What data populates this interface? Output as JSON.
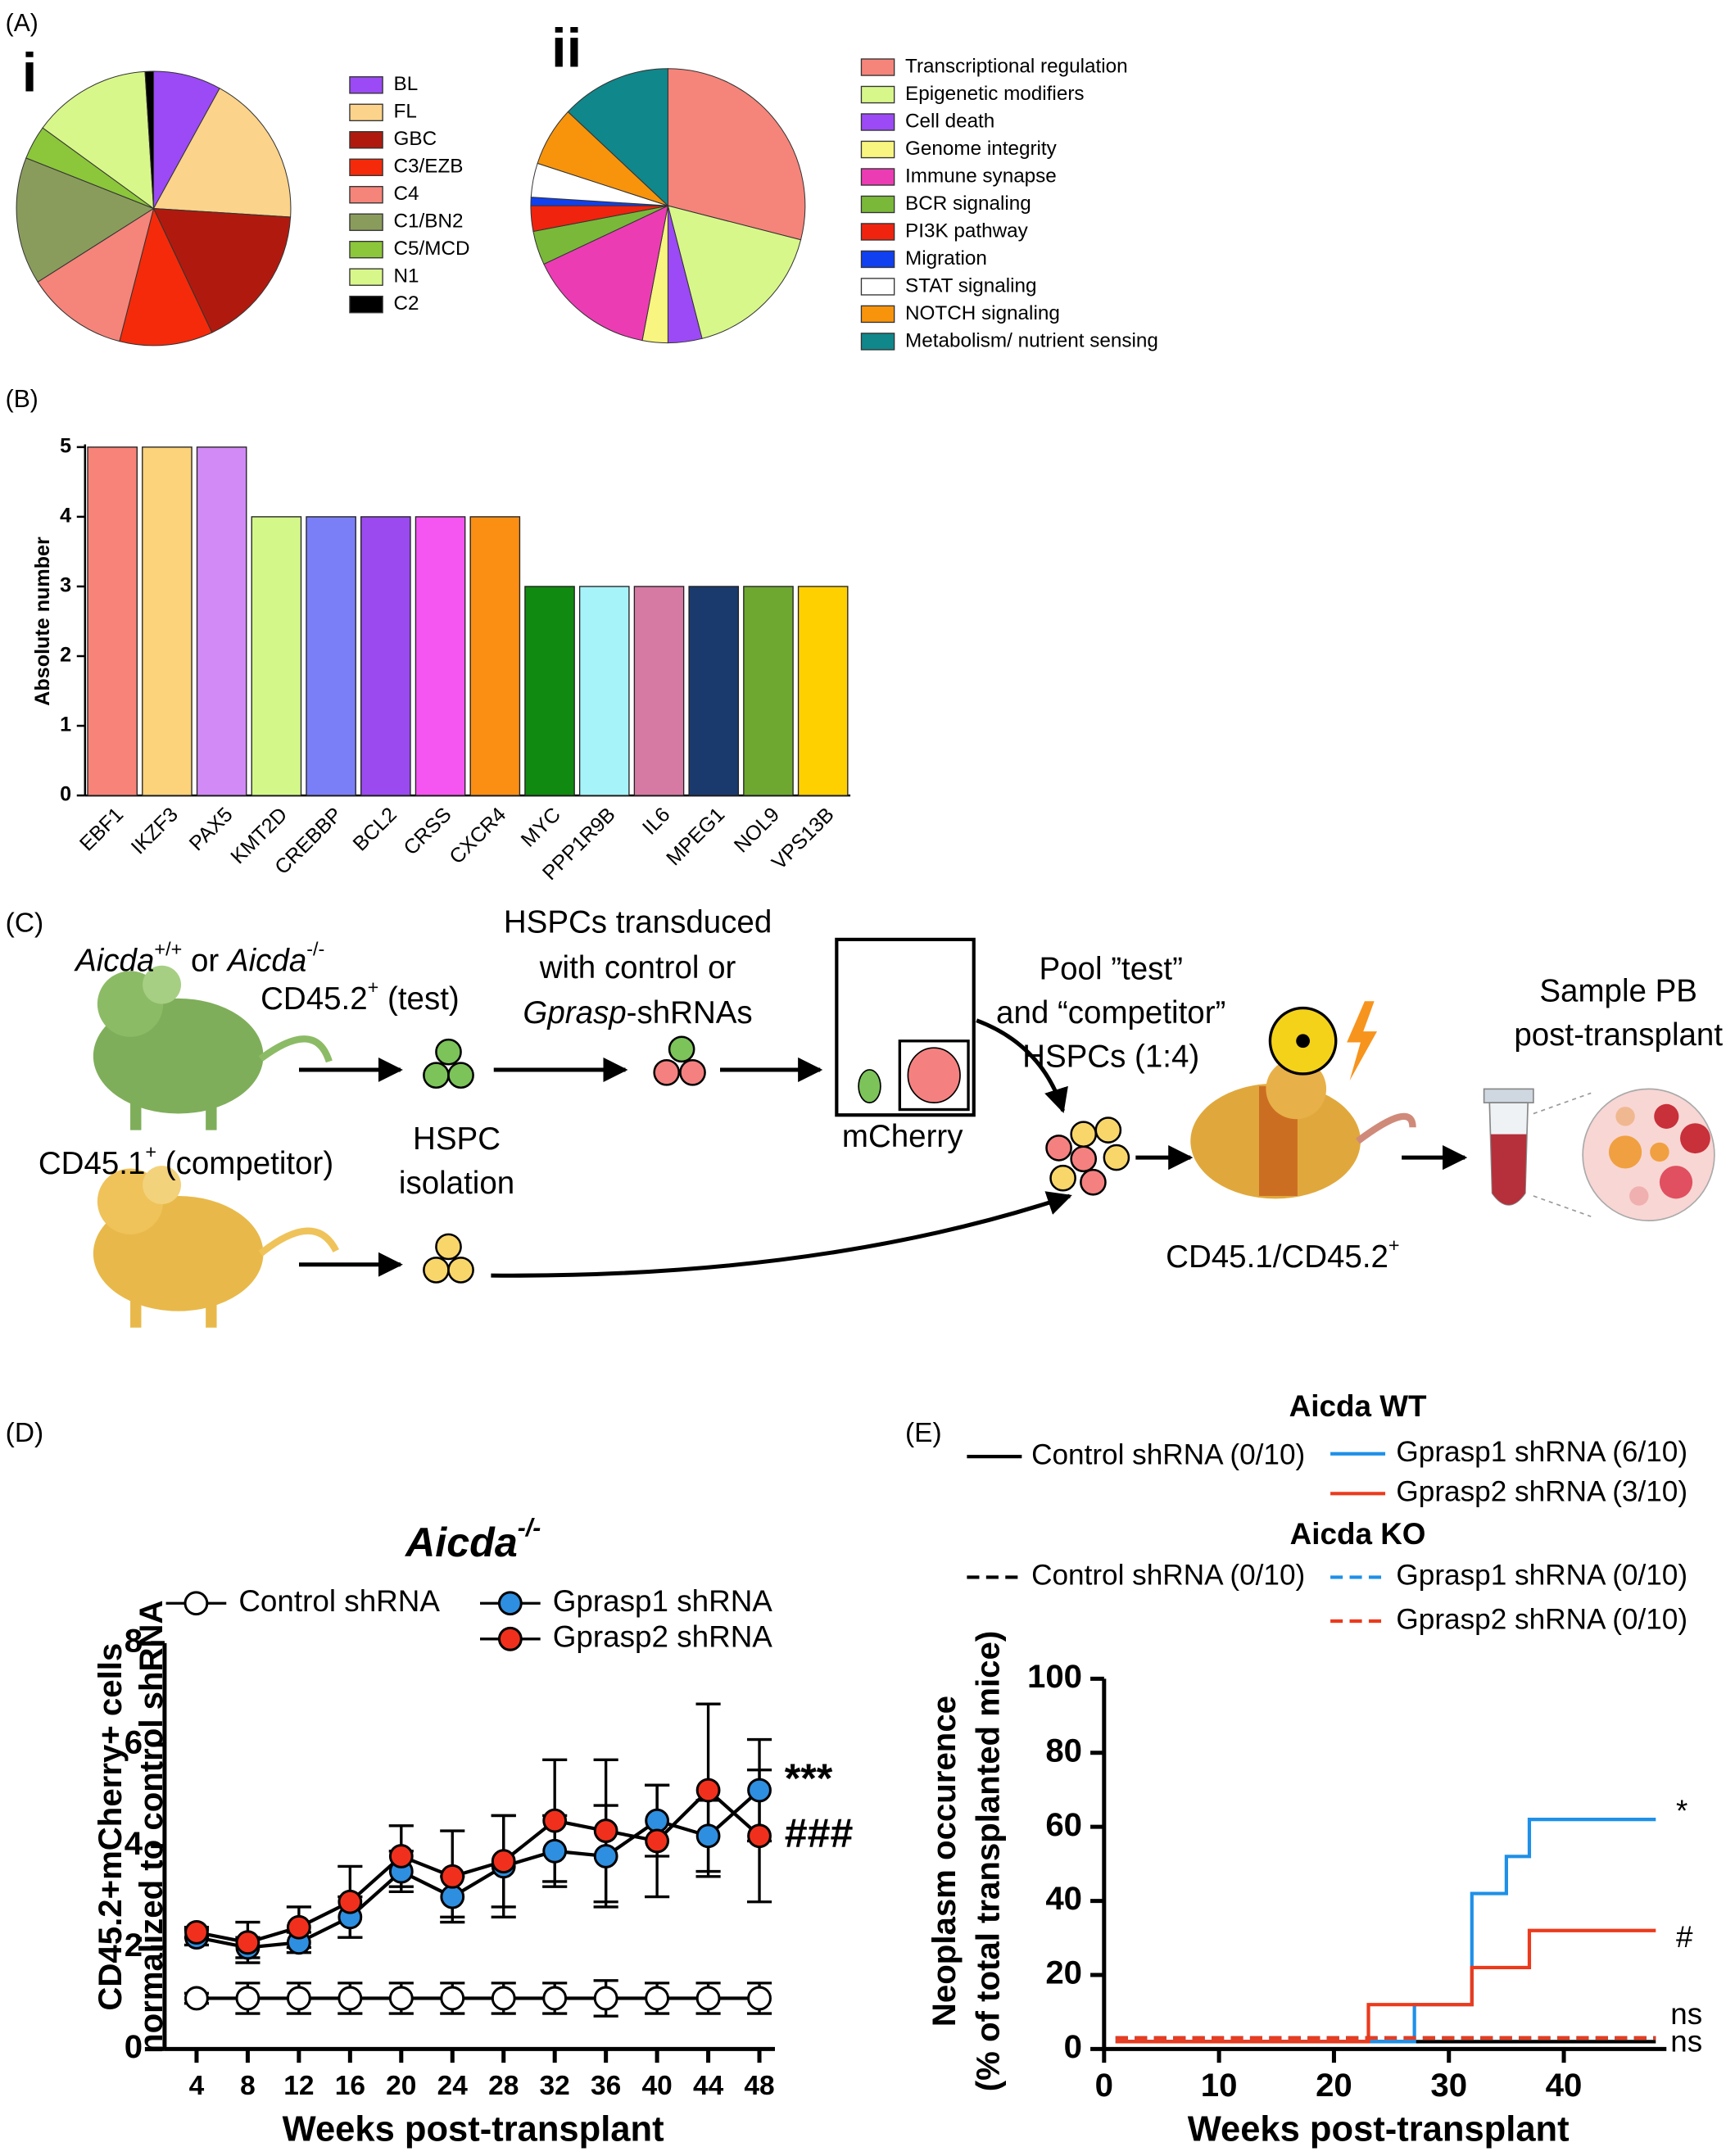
{
  "panel_labels": [
    "(A)",
    "(B)",
    "(C)",
    "(D)",
    "(E)"
  ],
  "diagram": {
    "texts": [
      [
        "Aicda",
        "+/+",
        " or ",
        "Aicda",
        "-/-"
      ],
      [
        "CD45.2",
        "+",
        " (test)"
      ],
      [
        "HSPCs transduced"
      ],
      [
        "with control or"
      ],
      [
        "Gprasp",
        "-shRNAs"
      ],
      [
        "Pool ”test”"
      ],
      [
        "and “competitor”"
      ],
      [
        "HSPCs (1:4)"
      ],
      [
        "Sample PB"
      ],
      [
        "post-transplant"
      ],
      [
        "mCherry"
      ],
      [
        "HSPC"
      ],
      [
        "isolation"
      ],
      [
        "CD45.1",
        "+",
        " (competitor)"
      ],
      [
        "CD45.1/CD45.2",
        "+"
      ]
    ]
  },
  "chart_data": [
    {
      "type": "pie",
      "title": "i",
      "categories": [
        "BL",
        "FL",
        "GBC",
        "C3/EZB",
        "C4",
        "C1/BN2",
        "C5/MCD",
        "N1",
        "C2"
      ],
      "values": [
        8,
        18,
        17,
        11,
        12,
        15,
        4,
        14,
        1
      ],
      "colors": [
        "#9b4af5",
        "#fbd38a",
        "#b01a0e",
        "#f52a0a",
        "#f5847a",
        "#8a9c5c",
        "#8cc63a",
        "#d8f78a",
        "#000000"
      ]
    },
    {
      "type": "pie",
      "title": "ii",
      "categories": [
        "Transcriptional regulation",
        "Epigenetic modifiers",
        "Cell death",
        "Genome integrity",
        "Immune synapse",
        "BCR signaling",
        "PI3K pathway",
        "Migration",
        "STAT signaling",
        "NOTCH signaling",
        "Metabolism/ nutrient sensing"
      ],
      "values": [
        29,
        17,
        4,
        3,
        15,
        4,
        3,
        1,
        4,
        7,
        13
      ],
      "colors": [
        "#f5847a",
        "#d8f78a",
        "#9b4af5",
        "#f8f580",
        "#ec3cb4",
        "#7ab83a",
        "#f0230f",
        "#1040f0",
        "#ffffff",
        "#f7940c",
        "#10878a"
      ]
    },
    {
      "type": "bar",
      "ylabel": "Absolute number",
      "categories": [
        "EBF1",
        "IKZF3",
        "PAX5",
        "KMT2D",
        "CREBBP",
        "BCL2",
        "CRSS",
        "CXCR4",
        "MYC",
        "PPP1R9B",
        "IL6",
        "MPEG1",
        "NOL9",
        "VPS13B"
      ],
      "values": [
        5,
        5,
        5,
        4,
        4,
        4,
        4,
        4,
        3,
        3,
        3,
        3,
        3,
        3
      ],
      "colors": [
        "#f88379",
        "#fcd27a",
        "#d28af7",
        "#d4f78a",
        "#7b7ff7",
        "#9b4af0",
        "#f555f0",
        "#fa8f14",
        "#108a10",
        "#a6f3fa",
        "#d67aa4",
        "#1a3a6e",
        "#6ea830",
        "#ffd000"
      ],
      "ylim": [
        0,
        5
      ],
      "yticks": [
        0,
        1,
        2,
        3,
        4,
        5
      ]
    },
    {
      "type": "line",
      "title": "Aicda",
      "title_sup": "-/-",
      "xlabel": "Weeks post-transplant",
      "ylabel": [
        "CD45.2+mCherry+ cells",
        "normalized to control shRNA"
      ],
      "x": [
        4,
        8,
        12,
        16,
        20,
        24,
        28,
        32,
        36,
        40,
        44,
        48
      ],
      "xlim": [
        1.5,
        50.5
      ],
      "xticks": [
        4,
        8,
        12,
        16,
        20,
        24,
        28,
        32,
        36,
        40,
        44,
        48
      ],
      "ylim": [
        0,
        8
      ],
      "yticks": [
        0,
        2,
        4,
        6,
        8
      ],
      "series": [
        {
          "name": "Control shRNA",
          "color": "#ffffff",
          "values": [
            1,
            1,
            1,
            1,
            1,
            1,
            1,
            1,
            1,
            1,
            1,
            1
          ],
          "errors": [
            0.1,
            0.3,
            0.3,
            0.3,
            0.3,
            0.3,
            0.3,
            0.3,
            0.35,
            0.3,
            0.3,
            0.3
          ]
        },
        {
          "name": "Gprasp1 shRNA",
          "color": "#2e8ee0",
          "values": [
            2.2,
            2.0,
            2.1,
            2.6,
            3.5,
            3.0,
            3.6,
            3.9,
            3.8,
            4.5,
            4.2,
            5.1
          ],
          "errors": [
            0.15,
            0.2,
            0.2,
            0.4,
            0.4,
            0.4,
            1.0,
            0.7,
            1.0,
            0.7,
            0.7,
            1.0
          ]
        },
        {
          "name": "Gprasp2 shRNA",
          "color": "#f0301c",
          "values": [
            2.3,
            2.1,
            2.4,
            2.9,
            3.8,
            3.4,
            3.7,
            4.5,
            4.3,
            4.1,
            5.1,
            4.2
          ],
          "errors": [
            0.1,
            0.4,
            0.4,
            0.7,
            0.6,
            0.9,
            0.9,
            1.2,
            1.4,
            1.1,
            1.7,
            1.3
          ]
        }
      ],
      "annotations": [
        "***",
        "###"
      ]
    },
    {
      "type": "step",
      "xlabel": "Weeks post-transplant",
      "ylabel": [
        "Neoplasm occurence",
        "(% of total transplanted mice)"
      ],
      "xlim": [
        0,
        50
      ],
      "xticks": [
        0,
        10,
        20,
        30,
        40
      ],
      "ylim": [
        0,
        100
      ],
      "yticks": [
        0,
        20,
        40,
        60,
        80,
        100
      ],
      "legend_titles": [
        "Aicda WT",
        "Aicda KO"
      ],
      "series": [
        {
          "name": "Control shRNA (0/10)",
          "color": "#000000",
          "dashed": false,
          "x": [
            1,
            48
          ],
          "values": [
            2,
            2
          ]
        },
        {
          "name": "Gprasp1 shRNA (6/10)",
          "color": "#1e90e8",
          "dashed": false,
          "x": [
            1,
            27,
            32,
            35,
            37,
            48
          ],
          "values": [
            2,
            12,
            42,
            52,
            62,
            62
          ]
        },
        {
          "name": "Gprasp2 shRNA (3/10)",
          "color": "#ec3a1c",
          "dashed": false,
          "x": [
            1,
            23,
            32,
            37,
            48
          ],
          "values": [
            2,
            12,
            22,
            32,
            32
          ]
        },
        {
          "name": "Control shRNA (0/10)",
          "color": "#000000",
          "dashed": true,
          "x": [
            1,
            48
          ],
          "values": [
            3,
            3
          ]
        },
        {
          "name": "Gprasp1 shRNA (0/10)",
          "color": "#1e90e8",
          "dashed": true,
          "x": [
            1,
            48
          ],
          "values": [
            3,
            3
          ]
        },
        {
          "name": "Gprasp2 shRNA (0/10)",
          "color": "#ec3a1c",
          "dashed": true,
          "x": [
            1,
            48
          ],
          "values": [
            3,
            3
          ]
        }
      ],
      "annotations": [
        "*",
        "#",
        "ns",
        "ns"
      ]
    }
  ]
}
